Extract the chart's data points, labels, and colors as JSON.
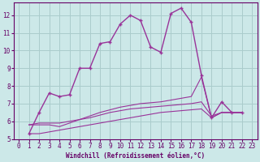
{
  "xlabel": "Windchill (Refroidissement éolien,°C)",
  "ylabel": "",
  "background_color": "#cce8e8",
  "grid_color": "#aacccc",
  "line_color": "#993399",
  "xlim": [
    -0.5,
    23.5
  ],
  "ylim": [
    5.0,
    12.7
  ],
  "yticks": [
    5,
    6,
    7,
    8,
    9,
    10,
    11,
    12
  ],
  "xticks": [
    0,
    1,
    2,
    3,
    4,
    5,
    6,
    7,
    8,
    9,
    10,
    11,
    12,
    13,
    14,
    15,
    16,
    17,
    18,
    19,
    20,
    21,
    22,
    23
  ],
  "series": [
    {
      "x": [
        1,
        2,
        3,
        4,
        5,
        6,
        7,
        8,
        9,
        10,
        11,
        12,
        13,
        14,
        15,
        16,
        17,
        18,
        19,
        20,
        21,
        22
      ],
      "y": [
        5.3,
        6.5,
        7.6,
        7.4,
        7.5,
        9.0,
        9.0,
        10.4,
        10.5,
        11.5,
        12.0,
        11.7,
        10.2,
        9.9,
        12.1,
        12.4,
        11.6,
        8.6,
        6.2,
        7.1,
        6.5,
        6.5
      ],
      "marker": true,
      "lw": 1.0
    },
    {
      "x": [
        1,
        2,
        3,
        4,
        5,
        6,
        7,
        8,
        9,
        10,
        11,
        12,
        13,
        14,
        15,
        16,
        17,
        18,
        19,
        20,
        21,
        22
      ],
      "y": [
        5.8,
        5.8,
        5.8,
        5.7,
        5.9,
        6.1,
        6.3,
        6.5,
        6.65,
        6.8,
        6.9,
        7.0,
        7.05,
        7.1,
        7.2,
        7.3,
        7.4,
        8.5,
        6.2,
        6.5,
        6.5,
        6.5
      ],
      "marker": false,
      "lw": 0.8
    },
    {
      "x": [
        1,
        2,
        3,
        4,
        5,
        6,
        7,
        8,
        9,
        10,
        11,
        12,
        13,
        14,
        15,
        16,
        17,
        18,
        19,
        20,
        21,
        22
      ],
      "y": [
        5.8,
        5.9,
        5.9,
        5.9,
        6.0,
        6.1,
        6.2,
        6.35,
        6.5,
        6.6,
        6.7,
        6.75,
        6.8,
        6.85,
        6.9,
        6.95,
        7.0,
        7.1,
        6.3,
        6.5,
        6.5,
        6.5
      ],
      "marker": false,
      "lw": 0.8
    },
    {
      "x": [
        1,
        2,
        3,
        4,
        5,
        6,
        7,
        8,
        9,
        10,
        11,
        12,
        13,
        14,
        15,
        16,
        17,
        18,
        19,
        20,
        21,
        22
      ],
      "y": [
        5.3,
        5.3,
        5.4,
        5.5,
        5.6,
        5.7,
        5.8,
        5.9,
        6.0,
        6.1,
        6.2,
        6.3,
        6.4,
        6.5,
        6.55,
        6.6,
        6.65,
        6.7,
        6.2,
        6.5,
        6.5,
        6.5
      ],
      "marker": false,
      "lw": 0.8
    }
  ],
  "tick_fontsize": 5.5,
  "xlabel_fontsize": 5.5,
  "spine_color": "#660066",
  "tick_color": "#660066"
}
